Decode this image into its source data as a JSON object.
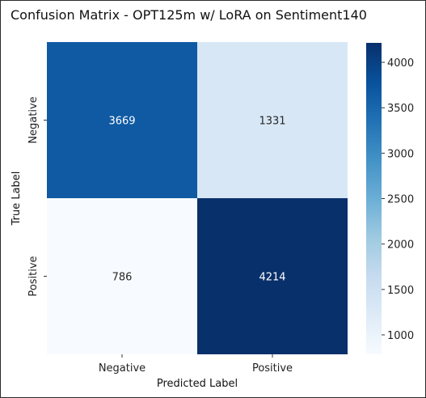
{
  "chart_data": {
    "type": "heatmap",
    "title": "Confusion Matrix - OPT125m w/ LoRA on Sentiment140",
    "xlabel": "Predicted Label",
    "ylabel": "True Label",
    "x_categories": [
      "Negative",
      "Positive"
    ],
    "y_categories": [
      "Negative",
      "Positive"
    ],
    "values": [
      [
        3669,
        1331
      ],
      [
        786,
        4214
      ]
    ],
    "colormap": "Blues",
    "colorbar": {
      "min": 786,
      "max": 4214,
      "ticks": [
        1000,
        1500,
        2000,
        2500,
        3000,
        3500,
        4000
      ]
    },
    "colors": {
      "low": "#f7fbff",
      "high": "#08306b"
    }
  }
}
